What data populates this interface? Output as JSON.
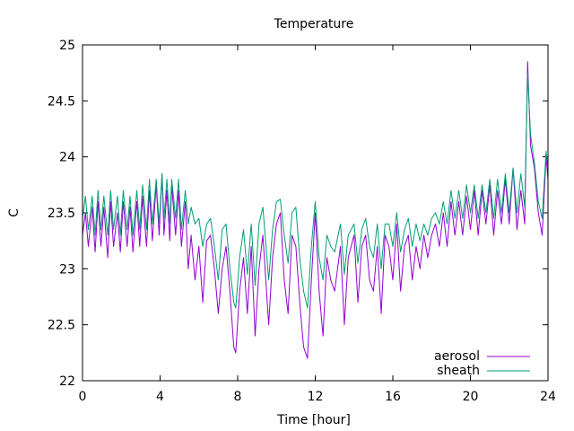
{
  "chart_data": {
    "type": "line",
    "title": "Temperature",
    "xlabel": "Time [hour]",
    "ylabel": "C",
    "xlim": [
      0,
      24
    ],
    "ylim": [
      22,
      25
    ],
    "xticks": [
      "0",
      "4",
      "8",
      "12",
      "16",
      "20",
      "24"
    ],
    "yticks": [
      "22",
      "22.5",
      "23",
      "23.5",
      "24",
      "24.5",
      "25"
    ],
    "legend_position": "bottom-right",
    "grid": false,
    "series": [
      {
        "name": "aerosol",
        "color": "#9400d3",
        "x": [
          0,
          0.15,
          0.3,
          0.5,
          0.65,
          0.8,
          0.95,
          1.1,
          1.3,
          1.45,
          1.6,
          1.8,
          1.95,
          2.1,
          2.3,
          2.45,
          2.6,
          2.8,
          2.95,
          3.1,
          3.3,
          3.45,
          3.6,
          3.8,
          3.95,
          4.1,
          4.2,
          4.35,
          4.5,
          4.6,
          4.8,
          4.95,
          5.1,
          5.3,
          5.45,
          5.6,
          5.8,
          6.0,
          6.2,
          6.4,
          6.6,
          6.8,
          7.0,
          7.2,
          7.4,
          7.6,
          7.8,
          7.9,
          8.1,
          8.3,
          8.5,
          8.7,
          8.9,
          9.1,
          9.3,
          9.6,
          9.8,
          10.0,
          10.2,
          10.4,
          10.6,
          10.8,
          11.0,
          11.2,
          11.4,
          11.6,
          11.8,
          12.0,
          12.2,
          12.4,
          12.6,
          12.8,
          13.0,
          13.3,
          13.5,
          13.7,
          14.0,
          14.2,
          14.4,
          14.6,
          14.8,
          15.0,
          15.2,
          15.4,
          15.6,
          15.8,
          16.0,
          16.2,
          16.4,
          16.6,
          16.8,
          17.0,
          17.2,
          17.4,
          17.6,
          17.8,
          18.0,
          18.2,
          18.4,
          18.6,
          18.8,
          19.0,
          19.2,
          19.4,
          19.6,
          19.8,
          20.0,
          20.2,
          20.4,
          20.6,
          20.8,
          21.0,
          21.2,
          21.4,
          21.6,
          21.8,
          22.0,
          22.2,
          22.4,
          22.6,
          22.8,
          22.95,
          23.1,
          23.3,
          23.5,
          23.7,
          23.9,
          24.0
        ],
        "values": [
          23.3,
          23.5,
          23.2,
          23.55,
          23.15,
          23.6,
          23.2,
          23.55,
          23.1,
          23.6,
          23.2,
          23.5,
          23.15,
          23.6,
          23.2,
          23.55,
          23.15,
          23.6,
          23.2,
          23.65,
          23.2,
          23.7,
          23.25,
          23.75,
          23.3,
          23.85,
          23.3,
          23.7,
          23.25,
          23.75,
          23.3,
          23.7,
          23.2,
          23.6,
          23.0,
          23.3,
          22.9,
          23.2,
          22.7,
          23.25,
          23.3,
          23.0,
          22.6,
          23.0,
          23.2,
          22.8,
          22.3,
          22.25,
          22.8,
          23.1,
          22.6,
          23.2,
          22.4,
          23.0,
          23.3,
          22.5,
          23.1,
          23.4,
          23.5,
          22.9,
          22.6,
          23.3,
          23.2,
          22.7,
          22.3,
          22.2,
          22.9,
          23.5,
          22.8,
          22.4,
          23.1,
          22.9,
          22.8,
          23.2,
          22.5,
          23.1,
          23.3,
          22.7,
          23.2,
          23.3,
          22.9,
          22.8,
          23.2,
          22.6,
          23.3,
          23.2,
          22.9,
          23.4,
          22.8,
          23.2,
          23.3,
          22.9,
          23.2,
          23.0,
          23.3,
          23.1,
          23.3,
          23.4,
          23.2,
          23.5,
          23.2,
          23.6,
          23.3,
          23.6,
          23.3,
          23.65,
          23.35,
          23.7,
          23.3,
          23.7,
          23.4,
          23.75,
          23.3,
          23.7,
          23.4,
          23.8,
          23.4,
          23.9,
          23.35,
          23.7,
          23.4,
          24.85,
          24.1,
          23.9,
          23.5,
          23.3,
          24.0,
          23.8
        ]
      },
      {
        "name": "sheath",
        "color": "#009e73",
        "x": [
          0,
          0.15,
          0.3,
          0.5,
          0.65,
          0.8,
          0.95,
          1.1,
          1.3,
          1.45,
          1.6,
          1.8,
          1.95,
          2.1,
          2.3,
          2.45,
          2.6,
          2.8,
          2.95,
          3.1,
          3.3,
          3.45,
          3.6,
          3.8,
          3.95,
          4.1,
          4.2,
          4.35,
          4.5,
          4.6,
          4.8,
          4.95,
          5.1,
          5.3,
          5.45,
          5.6,
          5.8,
          6.0,
          6.2,
          6.4,
          6.6,
          6.8,
          7.0,
          7.2,
          7.4,
          7.6,
          7.8,
          7.9,
          8.1,
          8.3,
          8.5,
          8.7,
          8.9,
          9.1,
          9.3,
          9.6,
          9.8,
          10.0,
          10.2,
          10.4,
          10.6,
          10.8,
          11.0,
          11.2,
          11.4,
          11.6,
          11.8,
          12.0,
          12.2,
          12.4,
          12.6,
          12.8,
          13.0,
          13.3,
          13.5,
          13.7,
          14.0,
          14.2,
          14.4,
          14.6,
          14.8,
          15.0,
          15.2,
          15.4,
          15.6,
          15.8,
          16.0,
          16.2,
          16.4,
          16.6,
          16.8,
          17.0,
          17.2,
          17.4,
          17.6,
          17.8,
          18.0,
          18.2,
          18.4,
          18.6,
          18.8,
          19.0,
          19.2,
          19.4,
          19.6,
          19.8,
          20.0,
          20.2,
          20.4,
          20.6,
          20.8,
          21.0,
          21.2,
          21.4,
          21.6,
          21.8,
          22.0,
          22.2,
          22.4,
          22.6,
          22.8,
          22.95,
          23.1,
          23.3,
          23.5,
          23.7,
          23.9,
          24.0
        ],
        "values": [
          23.45,
          23.65,
          23.35,
          23.65,
          23.3,
          23.7,
          23.35,
          23.65,
          23.3,
          23.7,
          23.35,
          23.65,
          23.3,
          23.7,
          23.35,
          23.65,
          23.3,
          23.7,
          23.35,
          23.75,
          23.35,
          23.8,
          23.4,
          23.8,
          23.4,
          23.85,
          23.45,
          23.8,
          23.4,
          23.8,
          23.45,
          23.8,
          23.35,
          23.7,
          23.4,
          23.55,
          23.4,
          23.45,
          23.2,
          23.4,
          23.45,
          23.2,
          22.9,
          23.35,
          23.4,
          23.0,
          22.7,
          22.65,
          23.1,
          23.35,
          22.95,
          23.4,
          22.85,
          23.4,
          23.55,
          22.9,
          23.35,
          23.6,
          23.62,
          23.3,
          23.05,
          23.5,
          23.55,
          23.1,
          22.8,
          22.65,
          23.2,
          23.6,
          23.1,
          22.9,
          23.3,
          23.2,
          23.15,
          23.4,
          22.95,
          23.3,
          23.4,
          23.05,
          23.35,
          23.45,
          23.2,
          23.1,
          23.4,
          23.0,
          23.4,
          23.4,
          23.2,
          23.5,
          23.15,
          23.35,
          23.45,
          23.2,
          23.4,
          23.25,
          23.4,
          23.3,
          23.45,
          23.5,
          23.4,
          23.6,
          23.4,
          23.7,
          23.45,
          23.7,
          23.45,
          23.75,
          23.5,
          23.75,
          23.45,
          23.75,
          23.5,
          23.8,
          23.45,
          23.8,
          23.5,
          23.85,
          23.5,
          23.9,
          23.5,
          23.85,
          23.55,
          24.75,
          24.2,
          23.95,
          23.6,
          23.45,
          24.05,
          23.9
        ]
      }
    ]
  }
}
